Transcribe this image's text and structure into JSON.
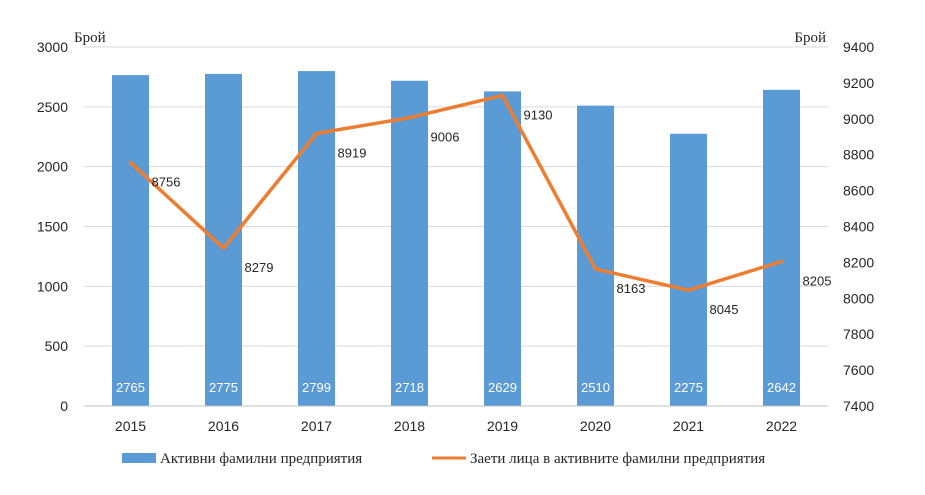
{
  "chart_data": {
    "type": "bar+line",
    "categories": [
      "2015",
      "2016",
      "2017",
      "2018",
      "2019",
      "2020",
      "2021",
      "2022"
    ],
    "left_axis": {
      "unit_label": "Брой",
      "ylim": [
        0,
        3000
      ],
      "ticks": [
        "0",
        "500",
        "1000",
        "1500",
        "2000",
        "2500",
        "3000"
      ]
    },
    "right_axis": {
      "unit_label": "Брой",
      "ylim": [
        7400,
        9400
      ],
      "ticks": [
        "7400",
        "7600",
        "7800",
        "8000",
        "8200",
        "8400",
        "8600",
        "8800",
        "9000",
        "9200",
        "9400"
      ]
    },
    "series": [
      {
        "name": "Активни фамилни предприятия",
        "type": "bar",
        "axis": "left",
        "color": "#5B9BD5",
        "values": [
          2765,
          2775,
          2799,
          2718,
          2629,
          2510,
          2275,
          2642
        ],
        "labels": [
          "2765",
          "2775",
          "2799",
          "2718",
          "2629",
          "2510",
          "2275",
          "2642"
        ]
      },
      {
        "name": "Заети лица в активните фамилни предприятия",
        "type": "line",
        "axis": "right",
        "color": "#ED7D31",
        "values": [
          8756,
          8279,
          8919,
          9006,
          9130,
          8163,
          8045,
          8205
        ],
        "labels": [
          "8756",
          "8279",
          "8919",
          "9006",
          "9130",
          "8163",
          "8045",
          "8205"
        ]
      }
    ],
    "grid": true,
    "legend_position": "bottom"
  }
}
